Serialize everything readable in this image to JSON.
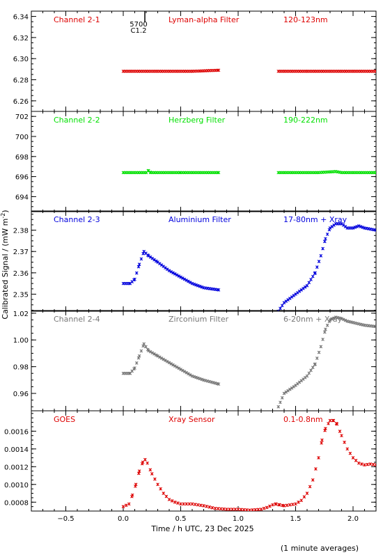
{
  "figure": {
    "ylabel": "Calibrated Signal / (mW m",
    "ylabel_sup": "-2",
    "ylabel_close": ")",
    "xlabel": "Time / h UTC, 23 Dec 2025",
    "footnote": "(1 minute averages)",
    "event_marker": {
      "line1": "5700",
      "line2": "C1.2",
      "x": 0.18
    }
  },
  "chart_data": [
    {
      "type": "scatter",
      "channel": "Channel 2-1",
      "filter": "Lyman-alpha Filter",
      "band": "120-123nm",
      "color": "#dd0000",
      "xlim": [
        -0.8,
        2.2
      ],
      "ylim": [
        6.25,
        6.345
      ],
      "yticks": [
        6.26,
        6.28,
        6.3,
        6.32,
        6.34
      ],
      "ytick_labels": [
        "6.26",
        "6.28",
        "6.30",
        "6.32",
        "6.34"
      ],
      "segments": [
        {
          "x": [
            0.0,
            0.3,
            0.6,
            0.83
          ],
          "y": [
            6.288,
            6.288,
            6.288,
            6.289
          ]
        },
        {
          "x": [
            1.35,
            1.6,
            1.9,
            2.2
          ],
          "y": [
            6.288,
            6.288,
            6.288,
            6.288
          ]
        }
      ]
    },
    {
      "type": "scatter",
      "channel": "Channel 2-2",
      "filter": "Herzberg Filter",
      "band": "190-222nm",
      "color": "#00e000",
      "xlim": [
        -0.8,
        2.2
      ],
      "ylim": [
        692.5,
        702.5
      ],
      "yticks": [
        694,
        696,
        698,
        700,
        702
      ],
      "ytick_labels": [
        "694",
        "696",
        "698",
        "700",
        "702"
      ],
      "segments": [
        {
          "x": [
            0.0,
            0.2,
            0.22,
            0.24,
            0.5,
            0.83
          ],
          "y": [
            696.4,
            696.4,
            696.6,
            696.4,
            696.4,
            696.4
          ]
        },
        {
          "x": [
            1.35,
            1.7,
            1.85,
            1.9,
            2.2
          ],
          "y": [
            696.4,
            696.4,
            696.5,
            696.4,
            696.4
          ]
        }
      ]
    },
    {
      "type": "scatter",
      "channel": "Channel 2-3",
      "filter": "Aluminium Filter",
      "band": "17-80nm + Xray",
      "color": "#0000dd",
      "xlim": [
        -0.8,
        2.2
      ],
      "ylim": [
        2.342,
        2.389
      ],
      "yticks": [
        2.35,
        2.36,
        2.37,
        2.38
      ],
      "ytick_labels": [
        "2.35",
        "2.36",
        "2.37",
        "2.38"
      ],
      "segments": [
        {
          "x": [
            0.0,
            0.06,
            0.1,
            0.14,
            0.18,
            0.22,
            0.3,
            0.4,
            0.5,
            0.6,
            0.7,
            0.83
          ],
          "y": [
            2.355,
            2.355,
            2.357,
            2.364,
            2.37,
            2.368,
            2.365,
            2.361,
            2.358,
            2.355,
            2.353,
            2.352
          ]
        },
        {
          "x": [
            1.35,
            1.4,
            1.5,
            1.6,
            1.67,
            1.72,
            1.76,
            1.8,
            1.85,
            1.9,
            1.95,
            2.0,
            2.05,
            2.1,
            2.2
          ],
          "y": [
            2.342,
            2.346,
            2.35,
            2.354,
            2.36,
            2.368,
            2.376,
            2.381,
            2.383,
            2.383,
            2.381,
            2.381,
            2.382,
            2.381,
            2.38
          ]
        }
      ]
    },
    {
      "type": "scatter",
      "channel": "Channel 2-4",
      "filter": "Zirconium Filter",
      "band": "6-20nm + Xray",
      "color": "#777777",
      "xlim": [
        -0.8,
        2.2
      ],
      "ylim": [
        0.947,
        1.022
      ],
      "yticks": [
        0.96,
        0.98,
        1.0,
        1.02
      ],
      "ytick_labels": [
        "0.96",
        "0.98",
        "1.00",
        "1.02"
      ],
      "segments": [
        {
          "x": [
            0.0,
            0.06,
            0.1,
            0.14,
            0.18,
            0.22,
            0.3,
            0.4,
            0.5,
            0.6,
            0.7,
            0.83
          ],
          "y": [
            0.975,
            0.975,
            0.979,
            0.988,
            0.997,
            0.992,
            0.988,
            0.983,
            0.978,
            0.973,
            0.97,
            0.967
          ]
        },
        {
          "x": [
            1.35,
            1.4,
            1.5,
            1.6,
            1.67,
            1.72,
            1.76,
            1.8,
            1.85,
            1.9,
            1.95,
            2.0,
            2.05,
            2.1,
            2.2
          ],
          "y": [
            0.95,
            0.96,
            0.966,
            0.973,
            0.982,
            0.995,
            1.008,
            1.015,
            1.017,
            1.016,
            1.014,
            1.013,
            1.012,
            1.011,
            1.01
          ]
        }
      ]
    },
    {
      "type": "scatter",
      "channel": "GOES",
      "filter": "Xray Sensor",
      "band": "0.1-0.8nm",
      "color": "#dd0000",
      "xlim": [
        -0.8,
        2.2
      ],
      "ylim": [
        0.0007,
        0.00183
      ],
      "yticks": [
        0.0008,
        0.001,
        0.0012,
        0.0014,
        0.0016
      ],
      "ytick_labels": [
        "0.0008",
        "0.0010",
        "0.0012",
        "0.0014",
        "0.0016"
      ],
      "segments": [
        {
          "x": [
            0.0,
            0.05,
            0.08,
            0.11,
            0.14,
            0.17,
            0.19,
            0.21,
            0.25,
            0.3,
            0.35,
            0.4,
            0.45,
            0.5,
            0.6,
            0.7,
            0.8,
            0.9,
            1.0,
            1.1,
            1.2,
            1.25,
            1.3,
            1.33,
            1.36,
            1.4,
            1.45,
            1.5,
            1.55,
            1.6,
            1.65,
            1.7,
            1.73,
            1.76,
            1.8,
            1.83,
            1.86,
            1.9,
            1.95,
            2.0,
            2.05,
            2.1,
            2.15,
            2.2
          ],
          "y": [
            0.00075,
            0.00078,
            0.00088,
            0.001,
            0.00115,
            0.00125,
            0.00128,
            0.00124,
            0.00112,
            0.001,
            0.0009,
            0.00083,
            0.0008,
            0.00078,
            0.00078,
            0.00076,
            0.00073,
            0.00072,
            0.00072,
            0.00071,
            0.00072,
            0.00074,
            0.00077,
            0.00078,
            0.00077,
            0.00076,
            0.00077,
            0.00078,
            0.00082,
            0.0009,
            0.00105,
            0.0013,
            0.0015,
            0.00163,
            0.00172,
            0.00172,
            0.00168,
            0.00155,
            0.0014,
            0.0013,
            0.00124,
            0.00122,
            0.00123,
            0.00122
          ]
        }
      ]
    }
  ],
  "xaxis": {
    "xlim": [
      -0.8,
      2.2
    ],
    "ticks": [
      -0.5,
      0.0,
      0.5,
      1.0,
      1.5,
      2.0
    ],
    "tick_labels": [
      "−0.5",
      "0.0",
      "0.5",
      "1.0",
      "1.5",
      "2.0"
    ]
  },
  "styles": {
    "axis_color": "#000000",
    "label_color": "#000000"
  }
}
